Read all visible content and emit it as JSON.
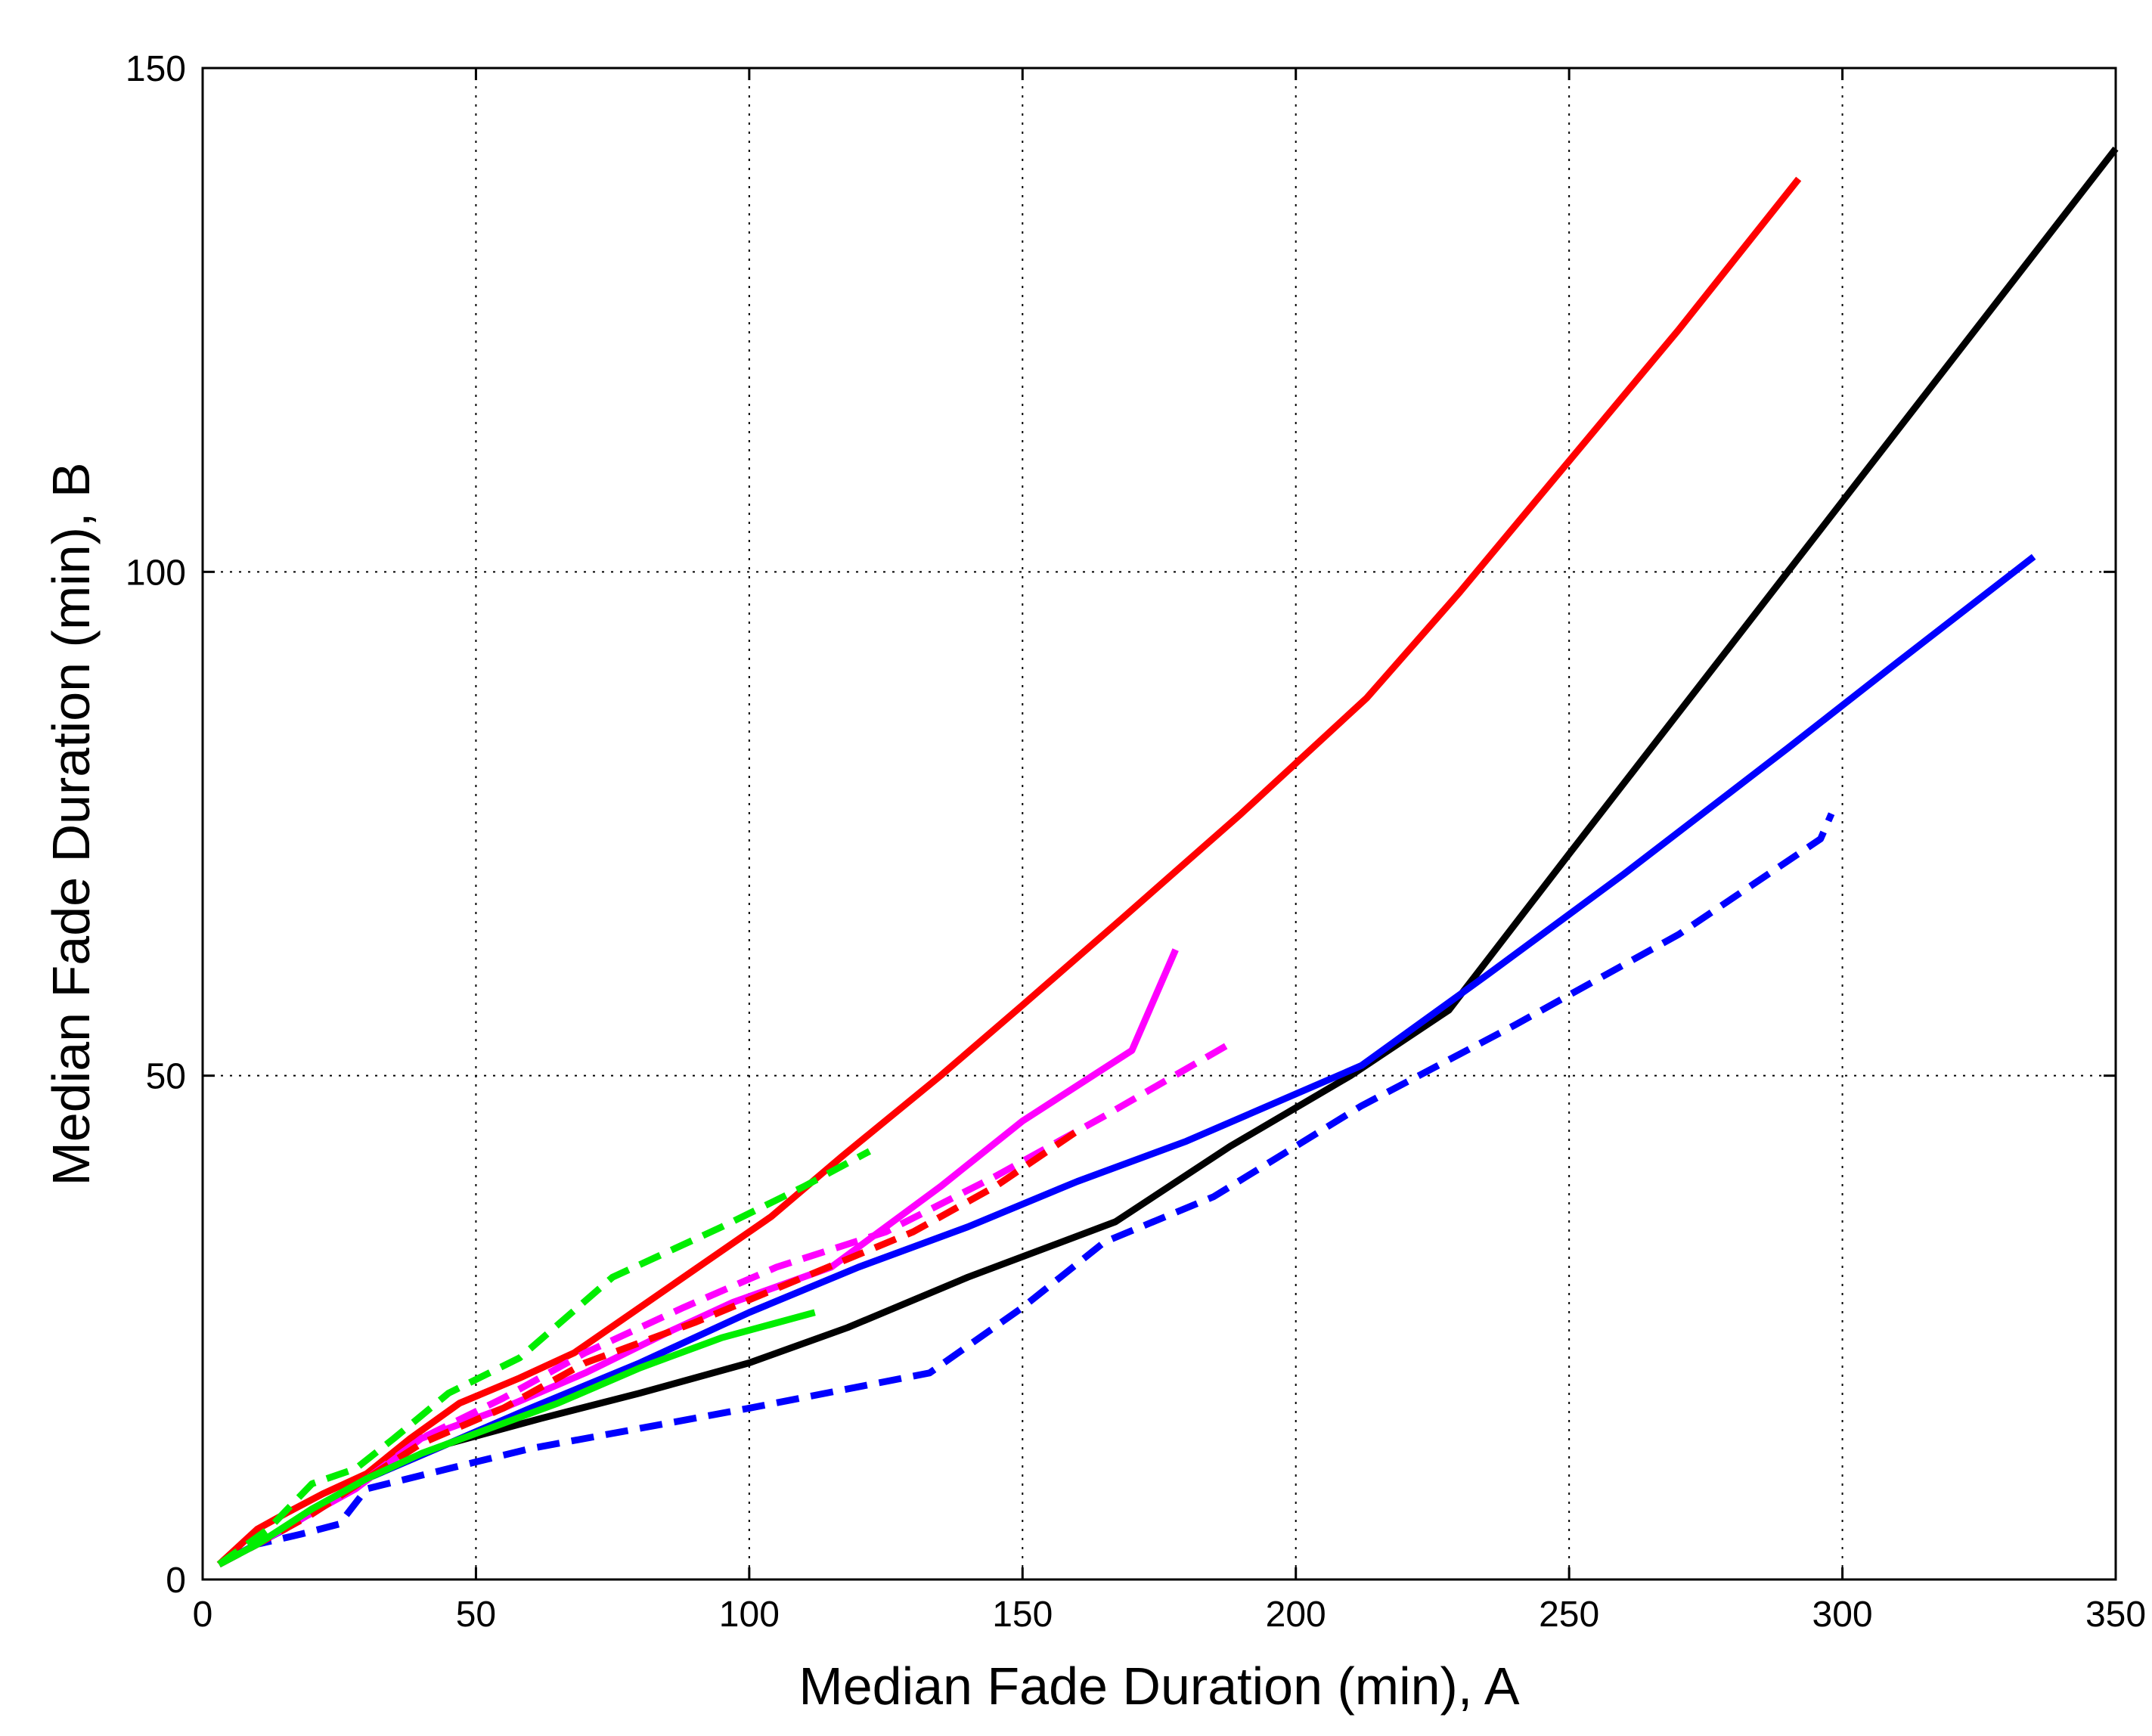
{
  "chart_data": {
    "type": "line",
    "title": "",
    "xlabel": "Median Fade Duration (min), A",
    "ylabel": "Median Fade Duration (min), B",
    "xlim": [
      0,
      350
    ],
    "ylim": [
      0,
      150
    ],
    "xticks": [
      0,
      50,
      100,
      150,
      200,
      250,
      300,
      350
    ],
    "yticks": [
      0,
      50,
      100,
      150
    ],
    "grid": true,
    "legend": "none",
    "series": [
      {
        "color": "#ff0000",
        "dash": "solid",
        "x": [
          3,
          7,
          10,
          15,
          22,
          30,
          38,
          47,
          58,
          68,
          80,
          92,
          104,
          117,
          135,
          150,
          168,
          190,
          213,
          230,
          250,
          270,
          292
        ],
        "y": [
          1.5,
          3.5,
          5,
          6.5,
          8.5,
          10.5,
          14,
          17.5,
          20,
          22.5,
          27,
          31.5,
          36,
          42,
          50,
          57,
          65.5,
          76,
          87.5,
          98,
          111,
          124,
          139
        ]
      },
      {
        "color": "#000000",
        "dash": "solid",
        "x": [
          3,
          15,
          30,
          45,
          62,
          80,
          100,
          118,
          140,
          167,
          188,
          210,
          228,
          250,
          270,
          300,
          320,
          350
        ],
        "y": [
          1.5,
          5,
          10,
          13.5,
          16,
          18.5,
          21.5,
          25,
          30,
          35.5,
          43,
          50,
          56.5,
          72,
          86,
          107,
          121,
          142
        ]
      },
      {
        "color": "#0000ff",
        "dash": "solid",
        "x": [
          3,
          15,
          30,
          45,
          60,
          80,
          100,
          120,
          140,
          160,
          180,
          212,
          235,
          260,
          290,
          310,
          335
        ],
        "y": [
          1.5,
          5,
          10,
          13.5,
          17,
          21.5,
          26.5,
          31,
          35,
          39.5,
          43.5,
          51,
          60,
          70,
          82.5,
          91,
          101.5
        ]
      },
      {
        "color": "#0000ff",
        "dash": "dashed",
        "x": [
          3,
          10,
          18,
          25,
          30,
          45,
          60,
          80,
          100,
          133,
          150,
          165,
          185,
          212,
          240,
          270,
          296,
          298
        ],
        "y": [
          1.5,
          3.5,
          4.5,
          5.5,
          9,
          11,
          13,
          15,
          17,
          20.5,
          27,
          33.5,
          38,
          47,
          55,
          64,
          73.5,
          76
        ]
      },
      {
        "color": "#ff00ff",
        "dash": "solid",
        "x": [
          3,
          10,
          18,
          28,
          40,
          55,
          70,
          85,
          97,
          115,
          135,
          150,
          170,
          178
        ],
        "y": [
          1.5,
          3.5,
          6,
          9,
          14,
          17,
          20.5,
          24.5,
          27.5,
          31,
          39,
          45.5,
          52.5,
          62.5
        ]
      },
      {
        "color": "#ff00ff",
        "dash": "dashed",
        "x": [
          3,
          10,
          20,
          30,
          40,
          55,
          70,
          88,
          105,
          125,
          145,
          165,
          189
        ],
        "y": [
          1.5,
          3.5,
          6.5,
          10,
          14,
          18,
          22.5,
          27,
          31,
          34.5,
          40,
          46,
          53.5
        ]
      },
      {
        "color": "#ff0000",
        "dash": "dashed",
        "x": [
          3,
          10,
          20,
          30,
          40,
          55,
          70,
          90,
          110,
          130,
          145,
          160
        ],
        "y": [
          1.5,
          3.5,
          6.5,
          10,
          13.5,
          17,
          21.5,
          25.5,
          30,
          34.5,
          39,
          44.5
        ]
      },
      {
        "color": "#00ee00",
        "dash": "solid",
        "x": [
          3,
          10,
          20,
          30,
          40,
          50,
          65,
          80,
          95,
          112
        ],
        "y": [
          1.5,
          3.5,
          7,
          10,
          12.5,
          14.5,
          17.5,
          21,
          24,
          26.5
        ]
      },
      {
        "color": "#00ee00",
        "dash": "dashed",
        "x": [
          3,
          12,
          20,
          28,
          35,
          45,
          58,
          75,
          95,
          110,
          122
        ],
        "y": [
          1.5,
          5,
          9.5,
          11,
          14,
          18.5,
          22,
          30,
          35,
          39,
          42.5
        ]
      }
    ]
  }
}
